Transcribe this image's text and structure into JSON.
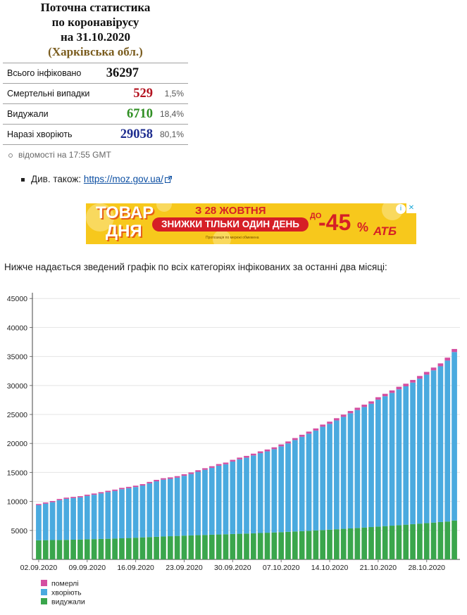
{
  "stats": {
    "title_line1": "Поточна статистика",
    "title_line2": "по коронавірусу",
    "title_line3": "на 31.10.2020",
    "region": "(Харківська обл.)",
    "rows": [
      {
        "label": "Всього інфіковано",
        "value": "36297",
        "pct": "",
        "color": "#111111"
      },
      {
        "label": "Смертельні випадки",
        "value": "529",
        "pct": "1,5%",
        "color": "#b3121f"
      },
      {
        "label": "Видужали",
        "value": "6710",
        "pct": "18,4%",
        "color": "#2f8f23"
      },
      {
        "label": "Наразі хворіють",
        "value": "29058",
        "pct": "80,1%",
        "color": "#1d2c8f"
      }
    ],
    "update_note": "відомості на 17:55 GMT"
  },
  "see_also": {
    "label": "Див. також:",
    "link_text": "https://moz.gov.ua/",
    "icon": "external-link-icon"
  },
  "ad": {
    "headline1": "ТОВАР",
    "headline2": "ДНЯ",
    "date_text": "З 28 ЖОВТНЯ",
    "pill_text": "ЗНИЖКИ ТІЛЬКИ ОДИН ДЕНЬ",
    "up_to": "ДО",
    "discount": "-45",
    "percent": "%",
    "brand": "АТБ",
    "fine_print": "Пропозиція по мережі обмежена",
    "info_icon": "info-icon",
    "close_icon": "close-icon"
  },
  "intro_text": "Нижче надається зведений графік по всіх категоріях інфікованих за останні два місяці:",
  "chart_data": {
    "type": "bar",
    "stacked": true,
    "title": "",
    "xlabel": "",
    "ylabel": "",
    "ylim": [
      0,
      46000
    ],
    "yticks": [
      5000,
      10000,
      15000,
      20000,
      25000,
      30000,
      35000,
      40000,
      45000
    ],
    "grid": true,
    "legend_position": "bottom-left",
    "start_date": "02.09.2020",
    "end_date": "31.10.2020",
    "x_tick_labels": [
      "02.09.2020",
      "09.09.2020",
      "16.09.2020",
      "23.09.2020",
      "30.09.2020",
      "07.10.2020",
      "14.10.2020",
      "21.10.2020",
      "28.10.2020"
    ],
    "x_tick_days": [
      0,
      7,
      14,
      21,
      28,
      35,
      42,
      49,
      56
    ],
    "series": [
      {
        "name": "видужали",
        "color": "#3aa64c",
        "values": [
          3300,
          3320,
          3340,
          3350,
          3370,
          3400,
          3430,
          3470,
          3500,
          3530,
          3560,
          3600,
          3640,
          3690,
          3740,
          3800,
          3850,
          3900,
          3950,
          4000,
          4050,
          4100,
          4140,
          4180,
          4220,
          4260,
          4300,
          4340,
          4380,
          4420,
          4460,
          4500,
          4550,
          4600,
          4650,
          4700,
          4760,
          4820,
          4880,
          4940,
          5000,
          5060,
          5130,
          5200,
          5270,
          5340,
          5420,
          5500,
          5580,
          5660,
          5740,
          5820,
          5900,
          5990,
          6080,
          6170,
          6260,
          6350,
          6440,
          6530,
          6710
        ]
      },
      {
        "name": "хворіють",
        "color": "#4aaadf",
        "values": [
          6060,
          6300,
          6530,
          6870,
          7080,
          7180,
          7270,
          7480,
          7650,
          7850,
          8050,
          8210,
          8470,
          8590,
          8740,
          8940,
          9270,
          9570,
          9800,
          9890,
          10050,
          10320,
          10590,
          10930,
          11230,
          11530,
          11860,
          12070,
          12500,
          12840,
          13090,
          13430,
          13770,
          14040,
          14360,
          14800,
          15250,
          15770,
          16270,
          16750,
          17230,
          17830,
          18260,
          18780,
          19320,
          19870,
          20350,
          20790,
          21270,
          21900,
          22400,
          22900,
          23440,
          23870,
          24420,
          25010,
          25610,
          26260,
          26880,
          27770,
          29058
        ]
      },
      {
        "name": "померлі",
        "color": "#d44fa1",
        "values": [
          200,
          202,
          204,
          206,
          208,
          210,
          213,
          216,
          219,
          222,
          225,
          228,
          232,
          236,
          240,
          244,
          248,
          252,
          256,
          260,
          264,
          268,
          272,
          276,
          280,
          284,
          288,
          292,
          296,
          300,
          305,
          310,
          315,
          320,
          325,
          330,
          336,
          342,
          348,
          354,
          360,
          366,
          372,
          378,
          384,
          390,
          397,
          404,
          411,
          418,
          425,
          432,
          440,
          448,
          456,
          464,
          474,
          484,
          494,
          504,
          529
        ]
      }
    ]
  }
}
